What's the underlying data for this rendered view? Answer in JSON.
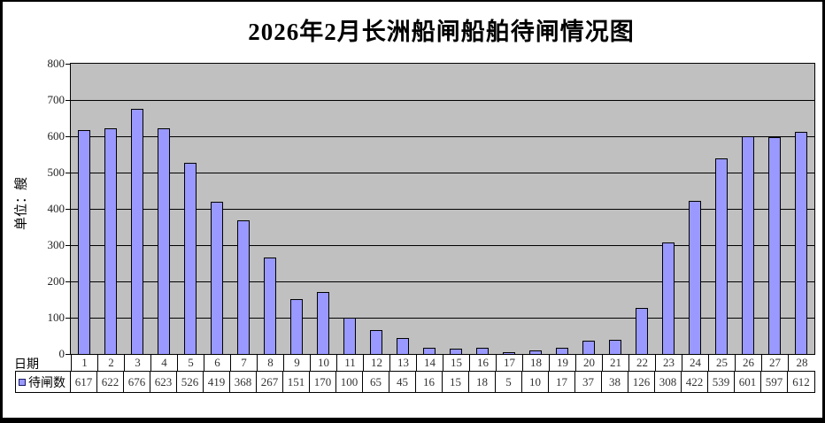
{
  "title": "2026年2月长洲船闸船舶待闸情况图",
  "y_axis": {
    "title": "单位：艘"
  },
  "x_axis": {
    "label": "日期"
  },
  "legend": {
    "label": "待闸数"
  },
  "colors": {
    "bar_fill": "#9999ff",
    "bar_border": "#000000",
    "plot_background": "#c0c0c0",
    "gridline": "#000000",
    "frame_border": "#000000",
    "page_background": "#ffffff"
  },
  "chart_data": {
    "type": "bar",
    "title": "2026年2月长洲船闸船舶待闸情况图",
    "xlabel": "日期",
    "ylabel": "单位：艘",
    "ylim": [
      0,
      800
    ],
    "ytick_step": 100,
    "grid": true,
    "legend_position": "bottom-table",
    "categories": [
      1,
      2,
      3,
      4,
      5,
      6,
      7,
      8,
      9,
      10,
      11,
      12,
      13,
      14,
      15,
      16,
      17,
      18,
      19,
      20,
      21,
      22,
      23,
      24,
      25,
      26,
      27,
      28
    ],
    "series": [
      {
        "name": "待闸数",
        "values": [
          617,
          622,
          676,
          623,
          526,
          419,
          368,
          267,
          151,
          170,
          100,
          65,
          45,
          16,
          15,
          18,
          5,
          10,
          17,
          37,
          38,
          126,
          308,
          422,
          539,
          601,
          597,
          612
        ]
      }
    ]
  }
}
